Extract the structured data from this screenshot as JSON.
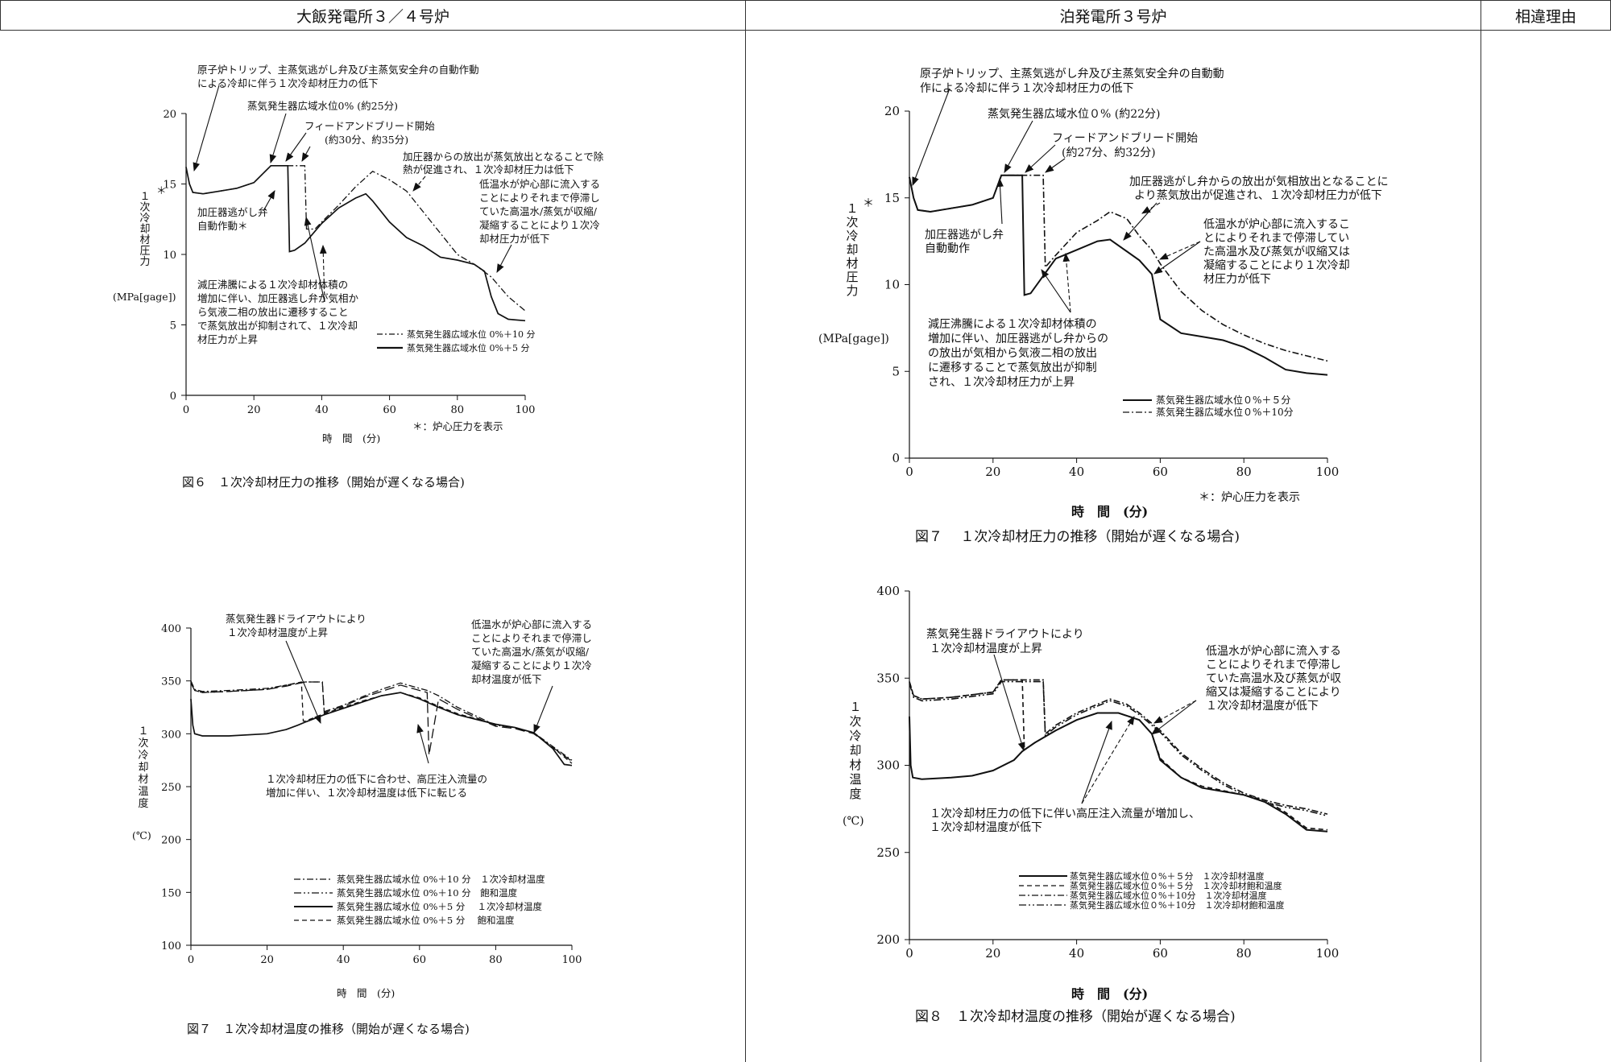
{
  "header": {
    "left": "大飯発電所３／４号炉",
    "middle": "泊発電所３号炉",
    "right": "相違理由"
  },
  "left_pressure": {
    "caption": "図６　１次冷却材圧力の推移（開始が遅くなる場合)",
    "ylabel": [
      "１",
      "次",
      "冷",
      "却",
      "材",
      "圧",
      "力"
    ],
    "yunit": "(MPa[gage])",
    "xlabel": "時　間　(分)",
    "note": "＊：炉心圧力を表示",
    "star": "＊",
    "ann1": [
      "原子炉トリップ、主蒸気逃がし弁及び主蒸気安全弁の自動作動",
      "による冷却に伴う１次冷却材圧力の低下"
    ],
    "ann2": "蒸気発生器広域水位0% (約25分)",
    "ann3": [
      "フィードアンドブリード開始",
      "(約30分、約35分)"
    ],
    "ann4": [
      "加圧器からの放出が蒸気放出となることで除",
      "熱が促進され、１次冷却材圧力は低下"
    ],
    "ann5": [
      "低温水が炉心部に流入する",
      "ことによりそれまで停滞し",
      "ていた高温水/蒸気が収縮/",
      "凝縮することにより１次冷",
      "却材圧力が低下"
    ],
    "ann6": [
      "加圧器逃がし弁",
      "自動作動＊"
    ],
    "ann7": [
      "減圧沸騰による１次冷却材体積の",
      "増加に伴い、加圧器逃し弁が気相か",
      "ら気液二相の放出に遷移すること",
      "で蒸気放出が抑制されて、１次冷却",
      "材圧力が上昇"
    ],
    "legend": [
      "蒸気発生器広域水位 0%＋10 分",
      "蒸気発生器広域水位 0%＋5 分"
    ]
  },
  "left_temp": {
    "caption": "図７　１次冷却材温度の推移（開始が遅くなる場合)",
    "ylabel": [
      "１",
      "次",
      "冷",
      "却",
      "材",
      "温",
      "度"
    ],
    "yunit": "(℃)",
    "xlabel": "時　間　(分)",
    "ann1": [
      "蒸気発生器ドライアウトにより",
      "１次冷却材温度が上昇"
    ],
    "ann2": [
      "低温水が炉心部に流入する",
      "ことによりそれまで停滞し",
      "ていた高温水/蒸気が収縮/",
      "凝縮することにより１次冷",
      "却材温度が低下"
    ],
    "ann3": [
      "１次冷却材圧力の低下に合わせ、高圧注入流量の",
      "増加に伴い、１次冷却材温度は低下に転じる"
    ],
    "legend": [
      "蒸気発生器広域水位 0%＋10 分　１次冷却材温度",
      "蒸気発生器広域水位 0%＋10 分　飽和温度",
      "蒸気発生器広域水位 0%＋5 分　 １次冷却材温度",
      "蒸気発生器広域水位 0%＋5 分　 飽和温度"
    ]
  },
  "right_pressure": {
    "caption": "図７　 １次冷却材圧力の推移（開始が遅くなる場合)",
    "ylabel": [
      "１",
      "次",
      "冷",
      "却",
      "材",
      "圧",
      "力"
    ],
    "yunit": "(MPa[gage])",
    "xlabel": "時　間　(分)",
    "note": "＊：炉心圧力を表示",
    "star": "＊",
    "ann1": [
      "原子炉トリップ、主蒸気逃がし弁及び主蒸気安全弁の自動動",
      "作による冷却に伴う１次冷却材圧力の低下"
    ],
    "ann2": "蒸気発生器広域水位０% (約22分)",
    "ann3": [
      "フィードアンドブリード開始",
      "(約27分、約32分)"
    ],
    "ann4": [
      "加圧器逃がし弁からの放出が気相放出となることに",
      "より蒸気放出が促進され、１次冷却材圧力が低下"
    ],
    "ann5": [
      "低温水が炉心部に流入するこ",
      "とによりそれまで停滞してい",
      "た高温水及び蒸気が収縮又は",
      "凝縮することにより１次冷却",
      "材圧力が低下"
    ],
    "ann6": [
      "加圧器逃がし弁",
      "自動動作"
    ],
    "ann7": [
      "減圧沸騰による１次冷却材体積の",
      "増加に伴い、加圧器逃がし弁からの",
      "の放出が気相から気液二相の放出",
      "に遷移することで蒸気放出が抑制",
      "され、１次冷却材圧力が上昇"
    ],
    "legend": [
      "蒸気発生器広域水位０%＋５分",
      "蒸気発生器広域水位０%＋10分"
    ]
  },
  "right_temp": {
    "caption": "図８　１次冷却材温度の推移（開始が遅くなる場合)",
    "ylabel": [
      "１",
      "次",
      "冷",
      "却",
      "材",
      "温",
      "度"
    ],
    "yunit": "(℃)",
    "xlabel": "時　間　(分)",
    "ann1": [
      "蒸気発生器ドライアウトにより",
      "１次冷却材温度が上昇"
    ],
    "ann2": [
      "低温水が炉心部に流入する",
      "ことによりそれまで停滞し",
      "ていた高温水及び蒸気が収",
      "縮又は凝縮することにより",
      "１次冷却材温度が低下"
    ],
    "ann3": [
      "１次冷却材圧力の低下に伴い高圧注入流量が増加し、",
      "１次冷却材温度が低下"
    ],
    "legend": [
      "蒸気発生器広域水位０%＋５分　１次冷却材温度",
      "蒸気発生器広域水位０%＋５分　１次冷却材飽和温度",
      "蒸気発生器広域水位０%＋10分　１次冷却材温度",
      "蒸気発生器広域水位０%＋10分　１次冷却材飽和温度"
    ]
  },
  "chart_data": [
    {
      "type": "line",
      "title": "図６　１次冷却材圧力の推移（開始が遅くなる場合)",
      "xlabel": "時　間　(分)",
      "ylabel": "１次冷却材圧力 (MPa[gage])",
      "xlim": [
        0,
        100
      ],
      "ylim": [
        0,
        20
      ],
      "xticks": [
        0,
        20,
        40,
        60,
        80,
        100
      ],
      "yticks": [
        0,
        5,
        10,
        15,
        20
      ],
      "series": [
        {
          "name": "蒸気発生器広域水位 0%＋10 分",
          "style": "dashdot",
          "x": [
            0,
            1,
            2,
            5,
            10,
            15,
            20,
            25,
            30,
            35,
            35.5,
            38,
            40,
            45,
            50,
            55,
            60,
            65,
            70,
            75,
            80,
            85,
            90,
            95,
            100
          ],
          "y": [
            16.2,
            15,
            14.4,
            14.3,
            14.5,
            14.7,
            15.1,
            16.3,
            16.3,
            16.3,
            11.8,
            11.8,
            12.3,
            13.5,
            14.8,
            15.9,
            15.3,
            14.5,
            13,
            11.5,
            10,
            9.3,
            8.4,
            7,
            6
          ]
        },
        {
          "name": "蒸気発生器広域水位 0%＋5 分",
          "style": "solid",
          "x": [
            0,
            1,
            2,
            5,
            10,
            15,
            20,
            25,
            30,
            30.5,
            32,
            35,
            40,
            45,
            50,
            53,
            55,
            60,
            65,
            70,
            75,
            80,
            85,
            88,
            90,
            92,
            95,
            100
          ],
          "y": [
            16.2,
            15,
            14.4,
            14.3,
            14.5,
            14.7,
            15.1,
            16.3,
            16.3,
            10.2,
            10.3,
            10.8,
            12.2,
            13.3,
            14,
            14.3,
            13.8,
            12.3,
            11.2,
            10.6,
            9.8,
            9.6,
            9.3,
            8.8,
            7,
            5.8,
            5.4,
            5.3
          ]
        }
      ]
    },
    {
      "type": "line",
      "title": "図７　１次冷却材温度の推移（開始が遅くなる場合)",
      "xlabel": "時　間　(分)",
      "ylabel": "１次冷却材温度 (℃)",
      "xlim": [
        0,
        100
      ],
      "ylim": [
        100,
        400
      ],
      "xticks": [
        0,
        20,
        40,
        60,
        80,
        100
      ],
      "yticks": [
        100,
        150,
        200,
        250,
        300,
        350,
        400
      ],
      "series": [
        {
          "name": "蒸気発生器広域水位 0%＋10 分　１次冷却材温度",
          "style": "dashdot",
          "x": [
            0,
            1,
            3,
            10,
            20,
            25,
            30,
            34.5,
            35,
            40,
            45,
            50,
            55,
            60,
            62,
            65,
            70,
            80,
            85,
            90,
            95,
            100
          ],
          "y": [
            350,
            342,
            340,
            341,
            343,
            346,
            349,
            349,
            321,
            327,
            335,
            342,
            348,
            343,
            341,
            336,
            325,
            308,
            306,
            301,
            288,
            275
          ]
        },
        {
          "name": "蒸気発生器広域水位 0%＋10 分　飽和温度",
          "style": "longdash",
          "x": [
            0,
            1,
            3,
            10,
            20,
            25,
            30,
            34.5,
            35,
            40,
            45,
            50,
            55,
            60,
            62,
            62.5,
            65,
            70,
            80,
            85,
            90,
            95,
            100
          ],
          "y": [
            348,
            341,
            339,
            340,
            342,
            345,
            349,
            349,
            320,
            326,
            334,
            340,
            346,
            341,
            339,
            280,
            333,
            323,
            307,
            305,
            300,
            287,
            274
          ]
        },
        {
          "name": "蒸気発生器広域水位 0%＋5 分　 １次冷却材温度",
          "style": "solid",
          "x": [
            0,
            0.5,
            1,
            3,
            10,
            20,
            25,
            28,
            30,
            35,
            40,
            45,
            50,
            55,
            60,
            65,
            70,
            80,
            85,
            90,
            95,
            98,
            100
          ],
          "y": [
            333,
            308,
            300,
            298,
            298,
            300,
            304,
            308,
            311,
            318,
            324,
            330,
            336,
            339,
            333,
            325,
            318,
            309,
            306,
            301,
            286,
            271,
            270
          ]
        },
        {
          "name": "蒸気発生器広域水位 0%＋5 分　 飽和温度",
          "style": "dash",
          "x": [
            0,
            1,
            3,
            10,
            20,
            25,
            29,
            29.5,
            30,
            35,
            40,
            45,
            50,
            55,
            60,
            65,
            70,
            80,
            85,
            90,
            95,
            100
          ],
          "y": [
            348,
            341,
            339,
            340,
            342,
            346,
            349,
            312,
            312,
            319,
            325,
            331,
            336,
            339,
            334,
            326,
            319,
            309,
            306,
            301,
            287,
            272
          ]
        }
      ]
    },
    {
      "type": "line",
      "title": "図７　 １次冷却材圧力の推移（開始が遅くなる場合)",
      "xlabel": "時　間　(分)",
      "ylabel": "１次冷却材圧力 (MPa[gage])",
      "xlim": [
        0,
        100
      ],
      "ylim": [
        0,
        20
      ],
      "xticks": [
        0,
        20,
        40,
        60,
        80,
        100
      ],
      "yticks": [
        0,
        5,
        10,
        15,
        20
      ],
      "series": [
        {
          "name": "蒸気発生器広域水位０%＋５分",
          "style": "solid",
          "x": [
            0,
            1,
            2,
            5,
            10,
            15,
            20,
            22,
            27,
            27.5,
            29,
            32,
            35,
            40,
            45,
            48,
            55,
            58,
            60,
            65,
            70,
            75,
            80,
            85,
            90,
            95,
            100
          ],
          "y": [
            16.2,
            15,
            14.3,
            14.2,
            14.4,
            14.6,
            15,
            16.3,
            16.3,
            9.4,
            9.5,
            10.5,
            11.5,
            12,
            12.5,
            12.6,
            11.4,
            10.6,
            8,
            7.2,
            7,
            6.8,
            6.4,
            5.8,
            5.1,
            4.9,
            4.8
          ]
        },
        {
          "name": "蒸気発生器広域水位０%＋10分",
          "style": "dashdot",
          "x": [
            0,
            1,
            2,
            5,
            10,
            15,
            20,
            22,
            32,
            32.5,
            35,
            40,
            45,
            48,
            52,
            55,
            58,
            60,
            65,
            70,
            75,
            80,
            85,
            90,
            95,
            100
          ],
          "y": [
            16.2,
            15,
            14.3,
            14.2,
            14.4,
            14.6,
            15,
            16.3,
            16.3,
            11,
            11.7,
            13,
            13.7,
            14.2,
            13.8,
            12.8,
            12,
            11.2,
            9.6,
            8.5,
            7.7,
            7.1,
            6.6,
            6.2,
            5.9,
            5.6
          ]
        }
      ]
    },
    {
      "type": "line",
      "title": "図８　１次冷却材温度の推移（開始が遅くなる場合)",
      "xlabel": "時　間　(分)",
      "ylabel": "１次冷却材温度 (℃)",
      "xlim": [
        0,
        100
      ],
      "ylim": [
        200,
        400
      ],
      "xticks": [
        0,
        20,
        40,
        60,
        80,
        100
      ],
      "yticks": [
        200,
        250,
        300,
        350,
        400
      ],
      "series": [
        {
          "name": "蒸気発生器広域水位０%＋５分　１次冷却材温度",
          "style": "solid",
          "x": [
            0,
            0.3,
            0.8,
            3,
            10,
            15,
            20,
            25,
            27,
            30,
            35,
            40,
            45,
            50,
            55,
            58,
            60,
            65,
            70,
            80,
            85,
            90,
            95,
            100
          ],
          "y": [
            328,
            300,
            293,
            292,
            293,
            294,
            297,
            303,
            308,
            313,
            320,
            326,
            330,
            330,
            326,
            318,
            303,
            293,
            287,
            283,
            279,
            272,
            263,
            262
          ]
        },
        {
          "name": "蒸気発生器広域水位０%＋５分　１次冷却材飽和温度",
          "style": "dash",
          "x": [
            0,
            1,
            3,
            10,
            20,
            22,
            27,
            27.5,
            30,
            35,
            40,
            45,
            50,
            55,
            58,
            60,
            65,
            70,
            80,
            85,
            90,
            95,
            100
          ],
          "y": [
            348,
            340,
            338,
            339,
            342,
            349,
            349,
            309,
            313,
            320,
            326,
            330,
            330,
            326,
            318,
            304,
            293,
            288,
            283,
            280,
            273,
            264,
            263
          ]
        },
        {
          "name": "蒸気発生器広域水位０%＋10分　１次冷却材温度",
          "style": "dashdot",
          "x": [
            0,
            1,
            3,
            10,
            20,
            22,
            32,
            32.5,
            35,
            40,
            45,
            48,
            52,
            55,
            60,
            65,
            70,
            75,
            80,
            85,
            90,
            95,
            100
          ],
          "y": [
            348,
            340,
            338,
            339,
            342,
            349,
            349,
            318,
            323,
            330,
            335,
            338,
            335,
            330,
            320,
            307,
            298,
            290,
            284,
            280,
            277,
            275,
            272
          ]
        },
        {
          "name": "蒸気発生器広域水位０%＋10分　１次冷却材飽和温度",
          "style": "dashdotdot",
          "x": [
            0,
            1,
            3,
            10,
            20,
            22,
            32,
            32.5,
            35,
            40,
            45,
            48,
            52,
            55,
            60,
            65,
            70,
            75,
            80,
            85,
            90,
            95,
            100
          ],
          "y": [
            347,
            339,
            337,
            338,
            341,
            348,
            348,
            317,
            322,
            329,
            334,
            337,
            334,
            329,
            319,
            306,
            297,
            289,
            283,
            279,
            276,
            274,
            271
          ]
        }
      ]
    }
  ]
}
